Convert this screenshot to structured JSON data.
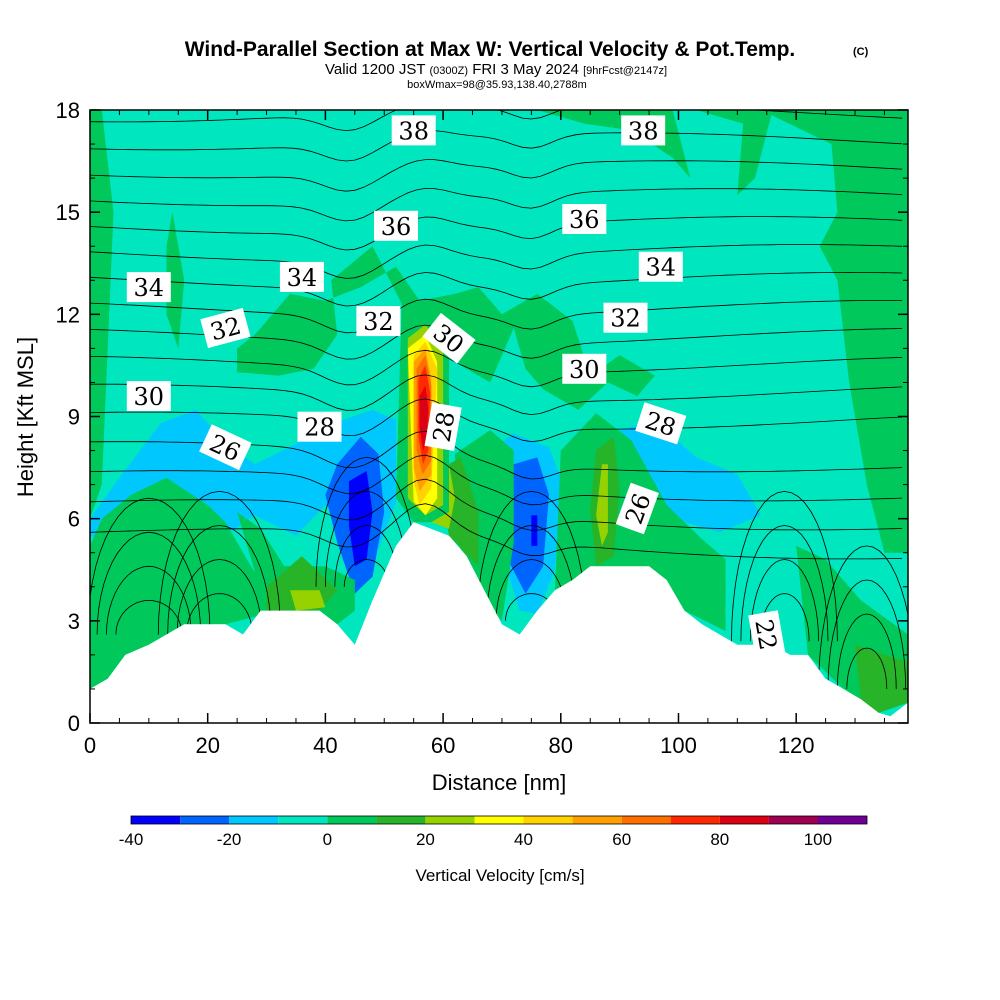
{
  "header": {
    "title": "Wind-Parallel Section at Max W: Vertical Velocity & Pot.Temp.",
    "title_mark": "(C)",
    "valid_a": "Valid 1200 JST",
    "valid_zulu": "(0300Z)",
    "valid_b": "FRI 3 May 2024",
    "fcst": "[9hrFcst@2147z]",
    "boxw": "boxWmax=98@35.93,138.40,2788m"
  },
  "chart_data": {
    "type": "contour",
    "xlabel": "Distance [nm]",
    "ylabel": "Height [Kft MSL]",
    "xlim": [
      0,
      139
    ],
    "ylim": [
      0,
      18
    ],
    "xticks": [
      0,
      20,
      40,
      60,
      80,
      100,
      120
    ],
    "yticks": [
      0,
      3,
      6,
      9,
      12,
      15,
      18
    ],
    "colorbar": {
      "title": "Vertical Velocity [cm/s]",
      "levels": [
        -40,
        -30,
        -20,
        -10,
        0,
        10,
        20,
        30,
        40,
        50,
        60,
        70,
        80,
        90,
        100,
        110
      ],
      "tick_labels": [
        "-40",
        "-20",
        "0",
        "20",
        "40",
        "60",
        "80",
        "100"
      ],
      "tick_values": [
        -40,
        -20,
        0,
        20,
        40,
        60,
        80,
        100
      ],
      "colors": [
        "#0000ff",
        "#0064ff",
        "#00c8ff",
        "#00e6be",
        "#00c85a",
        "#28b428",
        "#96d200",
        "#ffff00",
        "#ffd200",
        "#ffa000",
        "#ff6e00",
        "#ff2800",
        "#dc0014",
        "#a00050",
        "#6e0096"
      ]
    },
    "terrain": [
      [
        0,
        1.0
      ],
      [
        3,
        1.3
      ],
      [
        6,
        2.0
      ],
      [
        10,
        2.3
      ],
      [
        13,
        2.6
      ],
      [
        16,
        2.9
      ],
      [
        23,
        2.9
      ],
      [
        26,
        2.6
      ],
      [
        29,
        3.3
      ],
      [
        39,
        3.3
      ],
      [
        42,
        2.9
      ],
      [
        45,
        2.3
      ],
      [
        48,
        3.6
      ],
      [
        52,
        5.2
      ],
      [
        55,
        5.9
      ],
      [
        61,
        5.5
      ],
      [
        64,
        4.9
      ],
      [
        67,
        3.9
      ],
      [
        70,
        2.9
      ],
      [
        73,
        2.6
      ],
      [
        76,
        3.3
      ],
      [
        79,
        3.9
      ],
      [
        82,
        4.2
      ],
      [
        85,
        4.6
      ],
      [
        95,
        4.6
      ],
      [
        98,
        4.2
      ],
      [
        101,
        3.3
      ],
      [
        104,
        2.9
      ],
      [
        107,
        2.6
      ],
      [
        110,
        2.3
      ],
      [
        116,
        2.3
      ],
      [
        119,
        2.0
      ],
      [
        122,
        2.0
      ],
      [
        125,
        1.3
      ],
      [
        128,
        1.0
      ],
      [
        131,
        0.7
      ],
      [
        134,
        0.3
      ],
      [
        136,
        0.2
      ],
      [
        139,
        0.6
      ]
    ],
    "isotherm_labels": [
      {
        "text": "38",
        "x": 55,
        "y": 17.4,
        "angle": 0
      },
      {
        "text": "38",
        "x": 94,
        "y": 17.4,
        "angle": 0
      },
      {
        "text": "36",
        "x": 52,
        "y": 14.6,
        "angle": 0
      },
      {
        "text": "36",
        "x": 84,
        "y": 14.8,
        "angle": 0
      },
      {
        "text": "34",
        "x": 10,
        "y": 12.8,
        "angle": 0
      },
      {
        "text": "34",
        "x": 36,
        "y": 13.1,
        "angle": 0
      },
      {
        "text": "34",
        "x": 97,
        "y": 13.4,
        "angle": 0
      },
      {
        "text": "32",
        "x": 23,
        "y": 11.6,
        "angle": -15
      },
      {
        "text": "32",
        "x": 49,
        "y": 11.8,
        "angle": 0
      },
      {
        "text": "32",
        "x": 91,
        "y": 11.9,
        "angle": 0
      },
      {
        "text": "30",
        "x": 10,
        "y": 9.6,
        "angle": 0
      },
      {
        "text": "30",
        "x": 61,
        "y": 11.3,
        "angle": 38
      },
      {
        "text": "30",
        "x": 84,
        "y": 10.4,
        "angle": 0
      },
      {
        "text": "28",
        "x": 39,
        "y": 8.7,
        "angle": 0
      },
      {
        "text": "28",
        "x": 60,
        "y": 8.7,
        "angle": -80
      },
      {
        "text": "28",
        "x": 97,
        "y": 8.8,
        "angle": 18
      },
      {
        "text": "26",
        "x": 23,
        "y": 8.1,
        "angle": 25
      },
      {
        "text": "26",
        "x": 93,
        "y": 6.3,
        "angle": -70
      },
      {
        "text": "22",
        "x": 115,
        "y": 2.6,
        "angle": 80
      }
    ]
  }
}
